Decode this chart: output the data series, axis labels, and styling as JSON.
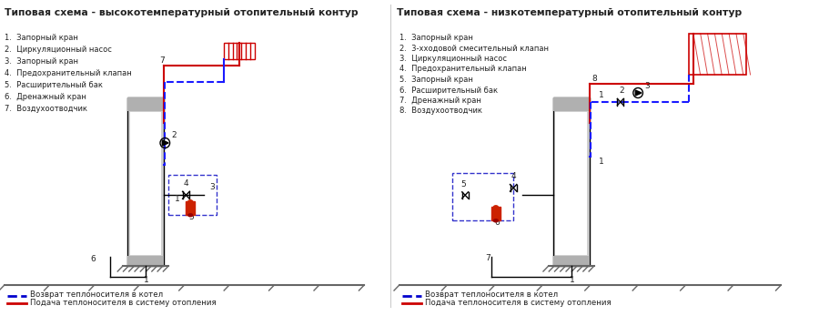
{
  "title_left": "Типовая схема - высокотемпературный отопительный контур",
  "title_right": "Типовая схема - низкотемпературный отопительный контур",
  "title_fontsize": 11,
  "bg_color": "#ffffff",
  "legend_blue_label": "Возврат теплоносителя в котел",
  "legend_red_label": "Подача теплоносителя в систему отопления",
  "items_left": [
    "1.  Запорный кран",
    "2.  Циркуляционный насос",
    "3.  Запорный кран",
    "4.  Предохранительный клапан",
    "5.  Расширительный бак",
    "6.  Дренажный кран",
    "7.  Воздухоотводчик"
  ],
  "items_right": [
    "1.  Запорный кран",
    "2.  3-хходовой смесительный клапан",
    "3.  Циркуляционный насос",
    "4.  Предохранительный клапан",
    "5.  Запорный кран",
    "6.  Расширительный бак",
    "7.  Дренажный кран",
    "8.  Воздухоотводчик"
  ],
  "blue_color": "#0000cd",
  "red_color": "#cc0000",
  "gray_color": "#aaaaaa",
  "dark_color": "#222222",
  "boiler_fill": "#d0d0d0",
  "boiler_top_fill": "#bbbbbb",
  "radiator_color": "#cc0000",
  "expansion_tank_color": "#cc2200",
  "pipe_blue": "#1a1aff",
  "pipe_red": "#cc0000",
  "border_blue": "#3333cc",
  "ground_color": "#888888"
}
